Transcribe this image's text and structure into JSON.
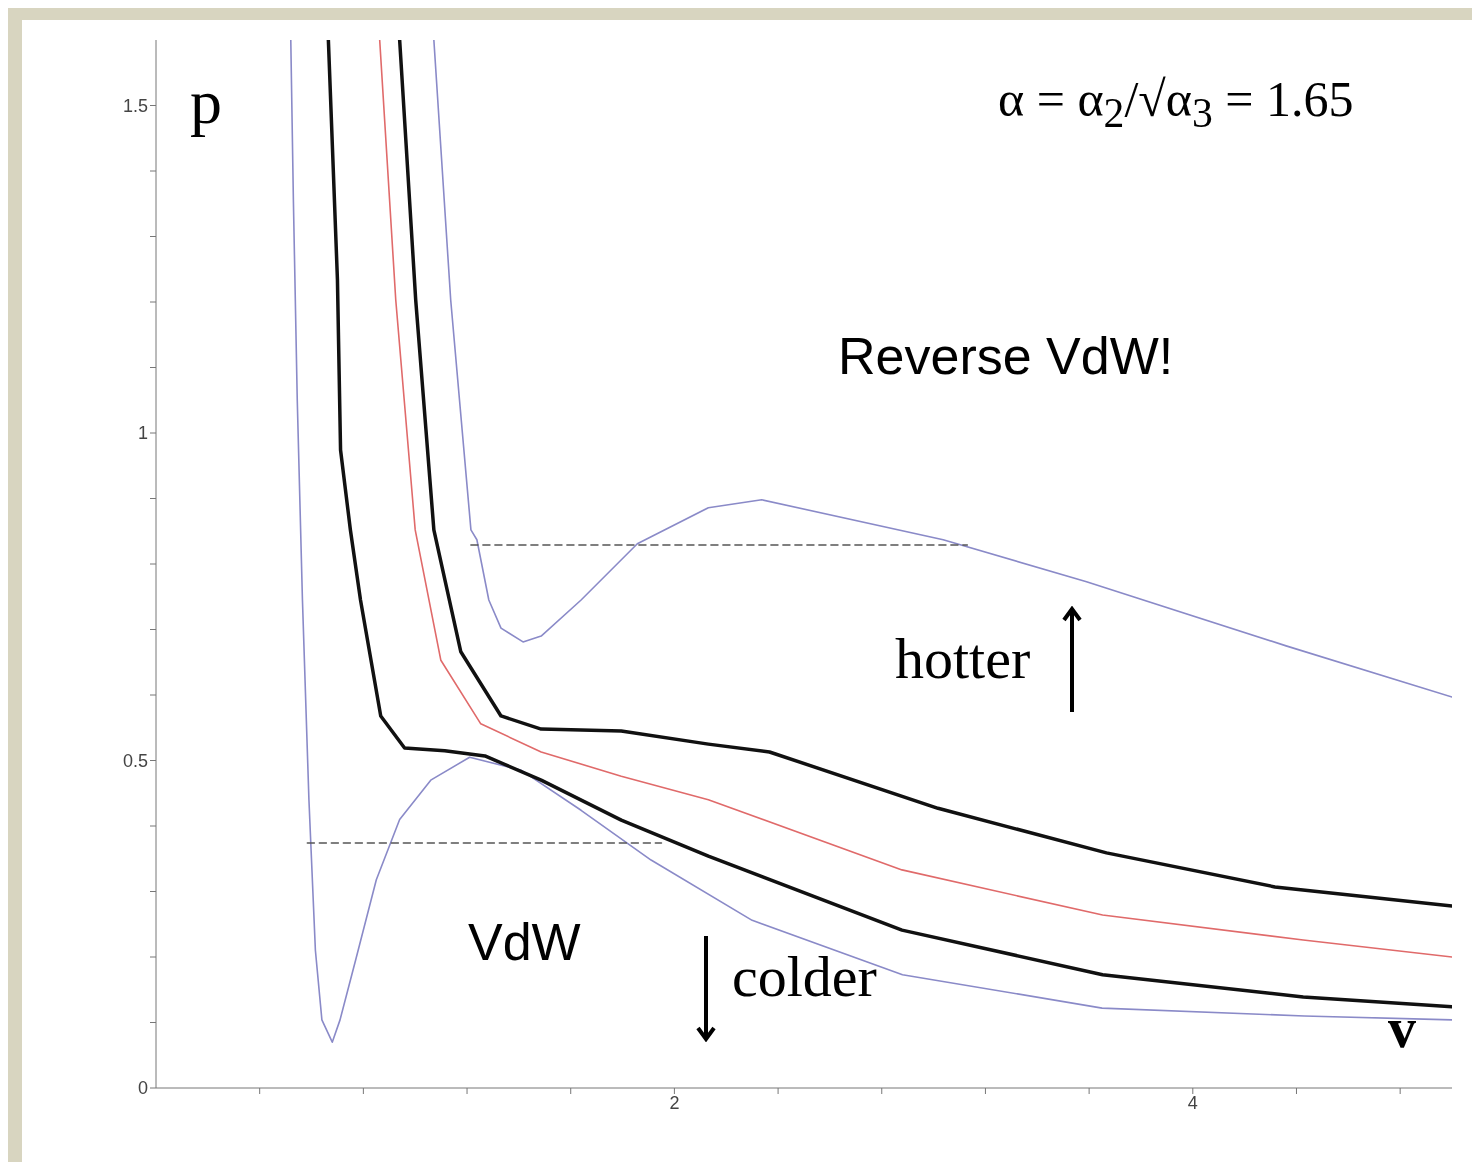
{
  "chart_data": {
    "type": "line",
    "xlabel": "v",
    "ylabel": "p",
    "annotations": [
      "α = α$_{2}$/√α$_{3}$ = 1.65",
      "Reverse VdW!",
      "hotter",
      "VdW",
      "colder"
    ],
    "xlim": [
      0,
      5
    ],
    "ylim": [
      0,
      1.6
    ],
    "xticks": [
      {
        "value": 0.4,
        "label": null
      },
      {
        "value": 0.8,
        "label": null
      },
      {
        "value": 1.2,
        "label": null
      },
      {
        "value": 1.6,
        "label": null
      },
      2,
      {
        "value": 2.4,
        "label": null
      },
      {
        "value": 2.8,
        "label": null
      },
      {
        "value": 3.2,
        "label": null
      },
      {
        "value": 3.6,
        "label": null
      },
      4,
      {
        "value": 4.4,
        "label": null
      },
      {
        "value": 4.8,
        "label": null
      }
    ],
    "yticks": [
      0,
      {
        "value": 0.1,
        "label": null
      },
      {
        "value": 0.2,
        "label": null
      },
      {
        "value": 0.3,
        "label": null
      },
      {
        "value": 0.4,
        "label": null
      },
      0.5,
      {
        "value": 0.6,
        "label": null
      },
      {
        "value": 0.7,
        "label": null
      },
      {
        "value": 0.8,
        "label": null
      },
      {
        "value": 0.9,
        "label": null
      },
      1,
      {
        "value": 1.1,
        "label": null
      },
      {
        "value": 1.2,
        "label": null
      },
      {
        "value": 1.3,
        "label": null
      },
      {
        "value": 1.4,
        "label": null
      },
      1.5
    ],
    "marker": "none",
    "line_style": "solid",
    "series": [
      {
        "color": "#8a8ac8",
        "x": [
          0.52,
          0.53,
          0.545,
          0.565,
          0.59,
          0.615,
          0.64,
          0.68,
          0.71,
          0.77,
          0.85,
          0.94,
          1.06,
          1.21,
          1.41,
          1.64,
          1.91,
          2.3,
          2.88,
          3.65,
          4.43,
          5.0
        ],
        "values": [
          1.6,
          1.356,
          1.05,
          0.745,
          0.44,
          0.21,
          0.104,
          0.07,
          0.104,
          0.195,
          0.318,
          0.41,
          0.47,
          0.505,
          0.485,
          0.424,
          0.348,
          0.256,
          0.173,
          0.122,
          0.11,
          0.104
        ]
      },
      {
        "color": "#111111",
        "x": [
          0.665,
          0.7,
          0.712,
          0.75,
          0.789,
          0.867,
          0.959,
          1.114,
          1.269,
          1.486,
          1.795,
          2.131,
          2.878,
          3.652,
          4.426,
          5.0
        ],
        "values": [
          1.6,
          1.234,
          0.974,
          0.852,
          0.745,
          0.568,
          0.519,
          0.515,
          0.507,
          0.47,
          0.409,
          0.354,
          0.241,
          0.173,
          0.139,
          0.124
        ]
      },
      {
        "color": "#e06a6a",
        "x": [
          0.863,
          0.925,
          1.0,
          1.099,
          1.253,
          1.486,
          1.795,
          2.131,
          2.878,
          3.652,
          4.426,
          5.0
        ],
        "values": [
          1.6,
          1.203,
          0.852,
          0.653,
          0.556,
          0.513,
          0.476,
          0.44,
          0.333,
          0.264,
          0.226,
          0.2
        ]
      },
      {
        "color": "#111111",
        "x": [
          0.94,
          1.002,
          1.072,
          1.176,
          1.331,
          1.486,
          1.795,
          2.131,
          2.367,
          3.017,
          3.667,
          4.317,
          5.0
        ],
        "values": [
          1.6,
          1.203,
          0.852,
          0.666,
          0.568,
          0.548,
          0.545,
          0.525,
          0.513,
          0.427,
          0.359,
          0.307,
          0.278
        ]
      },
      {
        "color": "#8a8ac8",
        "x": [
          1.072,
          1.137,
          1.215,
          1.238,
          1.284,
          1.331,
          1.416,
          1.486,
          1.64,
          1.857,
          2.131,
          2.337,
          3.037,
          3.59,
          4.36,
          5.0
        ],
        "values": [
          1.6,
          1.203,
          0.852,
          0.837,
          0.745,
          0.702,
          0.681,
          0.69,
          0.745,
          0.831,
          0.886,
          0.898,
          0.837,
          0.773,
          0.675,
          0.597
        ]
      },
      {
        "color": "#555555",
        "line_style": "dashed",
        "x": [
          1.215,
          3.13
        ],
        "values": [
          0.829,
          0.829
        ]
      },
      {
        "color": "#555555",
        "line_style": "dashed",
        "x": [
          0.584,
          1.95
        ],
        "values": [
          0.374,
          0.374
        ]
      }
    ]
  }
}
